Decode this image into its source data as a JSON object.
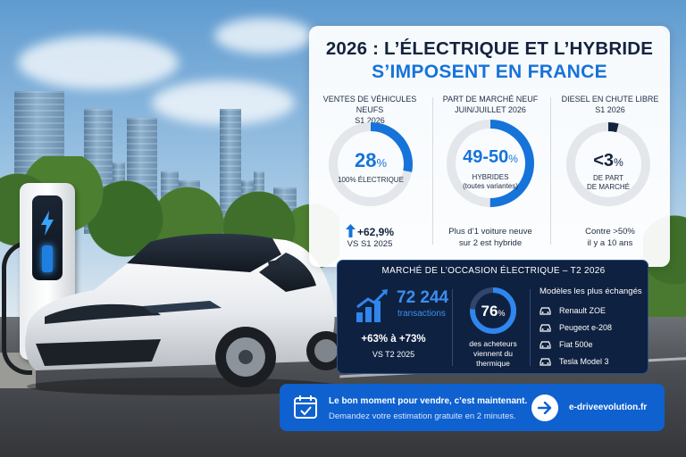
{
  "header": {
    "title_line1": "2026 : L’ÉLECTRIQUE ET L’HYBRIDE",
    "title_line2": "S’IMPOSENT EN FRANCE"
  },
  "stats": [
    {
      "head_line1": "VENTES DE VÉHICULES NEUFS",
      "head_line2": "S1 2026",
      "value": "28",
      "unit": "%",
      "caption": "100% ÉLECTRIQUE",
      "ring_fraction": 0.28,
      "trend_value": "+62,9%",
      "trend_label": "VS S1 2025"
    },
    {
      "head_line1": "PART DE MARCHÉ NEUF",
      "head_line2": "JUIN/JUILLET 2026",
      "value": "49-50",
      "unit": "%",
      "caption_line1": "HYBRIDES",
      "caption_line2": "(toutes variantes)",
      "ring_fraction": 0.5,
      "note_line1": "Plus d’1 voiture neuve",
      "note_line2": "sur 2 est hybride"
    },
    {
      "head_line1": "DIESEL EN CHUTE LIBRE",
      "head_line2": "S1 2026",
      "value": "<3",
      "unit": "%",
      "caption_line1": "DE PART",
      "caption_line2": "DE MARCHÉ",
      "ring_fraction": 0.03,
      "note_line1": "Contre >50%",
      "note_line2": "il y a 10 ans"
    }
  ],
  "used_market": {
    "title": "MARCHÉ DE L’OCCASION ÉLECTRIQUE – T2 2026",
    "transactions_value": "72 244",
    "transactions_label": "transactions",
    "growth": "+63% à +73%",
    "growth_label": "VS T2 2025",
    "buyers_pct": "76",
    "buyers_unit": "%",
    "buyers_fraction": 0.76,
    "buyers_line1": "des acheteurs",
    "buyers_line2": "viennent du",
    "buyers_line3": "thermique",
    "models_title": "Modèles les plus échangés",
    "models": [
      "Renault ZOE",
      "Peugeot e-208",
      "Fiat 500e",
      "Tesla Model 3"
    ]
  },
  "cta": {
    "line1": "Le bon moment pour vendre, c’est maintenant.",
    "line2": "Demandez votre estimation gratuite en 2 minutes.",
    "url": "e-driveevolution.fr"
  },
  "colors": {
    "accent": "#1673d9",
    "navy": "#14233d",
    "dark_panel": "#0f2140",
    "cta": "#0f61cf",
    "ring_track": "#e3e6ea"
  },
  "icons": [
    "bolt-icon",
    "arrow-up-icon",
    "bar-chart-icon",
    "car-icon",
    "calendar-icon",
    "arrow-right-icon"
  ]
}
